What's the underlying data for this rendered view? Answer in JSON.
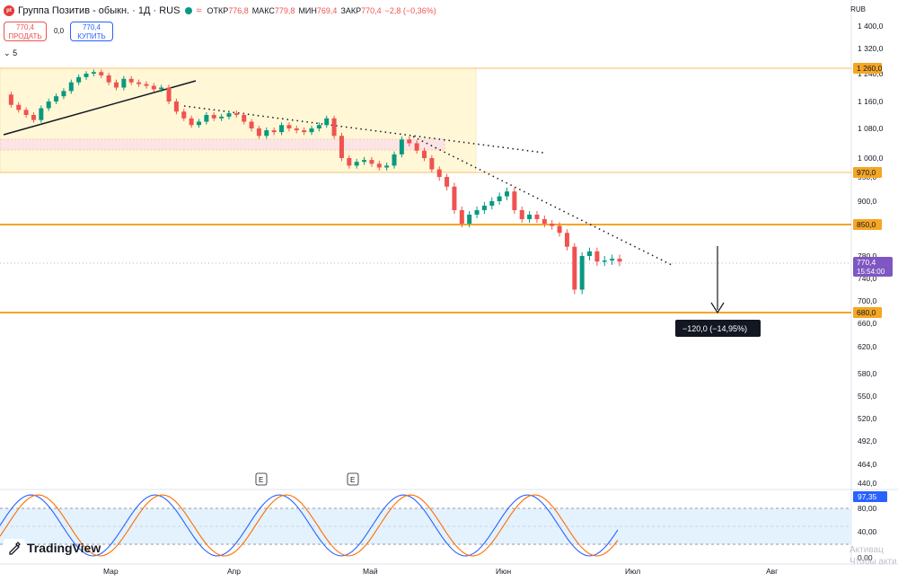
{
  "header": {
    "title": "Группа Позитив - обыкн. · 1Д · RUS",
    "open_label": "ОТКР",
    "open_value": "776,8",
    "high_label": "МАКС",
    "high_value": "779,8",
    "low_label": "МИН",
    "low_value": "769,4",
    "close_label": "ЗАКР",
    "close_value": "770,4",
    "change": "−2,8 (−0,36%)"
  },
  "trade": {
    "sell_price": "770,4",
    "sell_label": "ПРОДАТЬ",
    "spread": "0,0",
    "buy_price": "770,4",
    "buy_label": "КУПИТЬ"
  },
  "collapse_label": "5",
  "currency": "RUB",
  "logo_badge": "pt",
  "brand": "TradingView",
  "watermark": [
    "Активац",
    "Чтобы акти"
  ],
  "chart_data": [
    {
      "type": "candlestick",
      "price_axis_ticks": [
        "1 400,0",
        "1 320,0",
        "1 240,0",
        "1 160,0",
        "1 080,0",
        "1 000,0",
        "950,0",
        "900,0",
        "850,0",
        "780,0",
        "740,0",
        "700,0",
        "660,0",
        "620,0",
        "580,0",
        "550,0",
        "520,0",
        "492,0",
        "464,0",
        "440,0"
      ],
      "x_axis_ticks": [
        "Мар",
        "Апр",
        "Май",
        "Июн",
        "Июл",
        "Авг"
      ],
      "price_labels": [
        "1 260,0",
        "970,0",
        "850,0",
        "680,0"
      ],
      "last_price": "770,4",
      "countdown": "15:54:00",
      "measure_label": "−120,0 (−14,95%)",
      "event_markers": [
        "E",
        "E"
      ],
      "colors": {
        "up": "#089981",
        "down": "#ef5350",
        "level": "#f5a623",
        "zone": "#fff7d6"
      },
      "closes": [
        1180,
        1150,
        1135,
        1120,
        1105,
        1140,
        1160,
        1175,
        1190,
        1215,
        1230,
        1240,
        1245,
        1235,
        1215,
        1200,
        1225,
        1215,
        1210,
        1205,
        1195,
        1200,
        1160,
        1130,
        1110,
        1090,
        1100,
        1120,
        1110,
        1115,
        1125,
        1120,
        1100,
        1080,
        1060,
        1075,
        1070,
        1090,
        1080,
        1075,
        1070,
        1080,
        1090,
        1110,
        1060,
        1000,
        980,
        990,
        995,
        985,
        975,
        980,
        1010,
        1050,
        1040,
        1020,
        1000,
        970,
        950,
        930,
        880,
        850,
        870,
        880,
        890,
        900,
        910,
        920,
        880,
        860,
        870,
        860,
        850,
        845,
        830,
        800,
        720,
        780,
        790,
        770,
        772,
        775,
        770
      ]
    },
    {
      "type": "line",
      "name": "oscillator",
      "y_ticks": [
        "80,00",
        "40,00",
        "0,00"
      ],
      "last_value": "97,35",
      "bands": [
        80,
        20
      ],
      "colors": {
        "k": "#2962ff",
        "d": "#ff6d00",
        "band": "#e3f2fd"
      }
    }
  ]
}
